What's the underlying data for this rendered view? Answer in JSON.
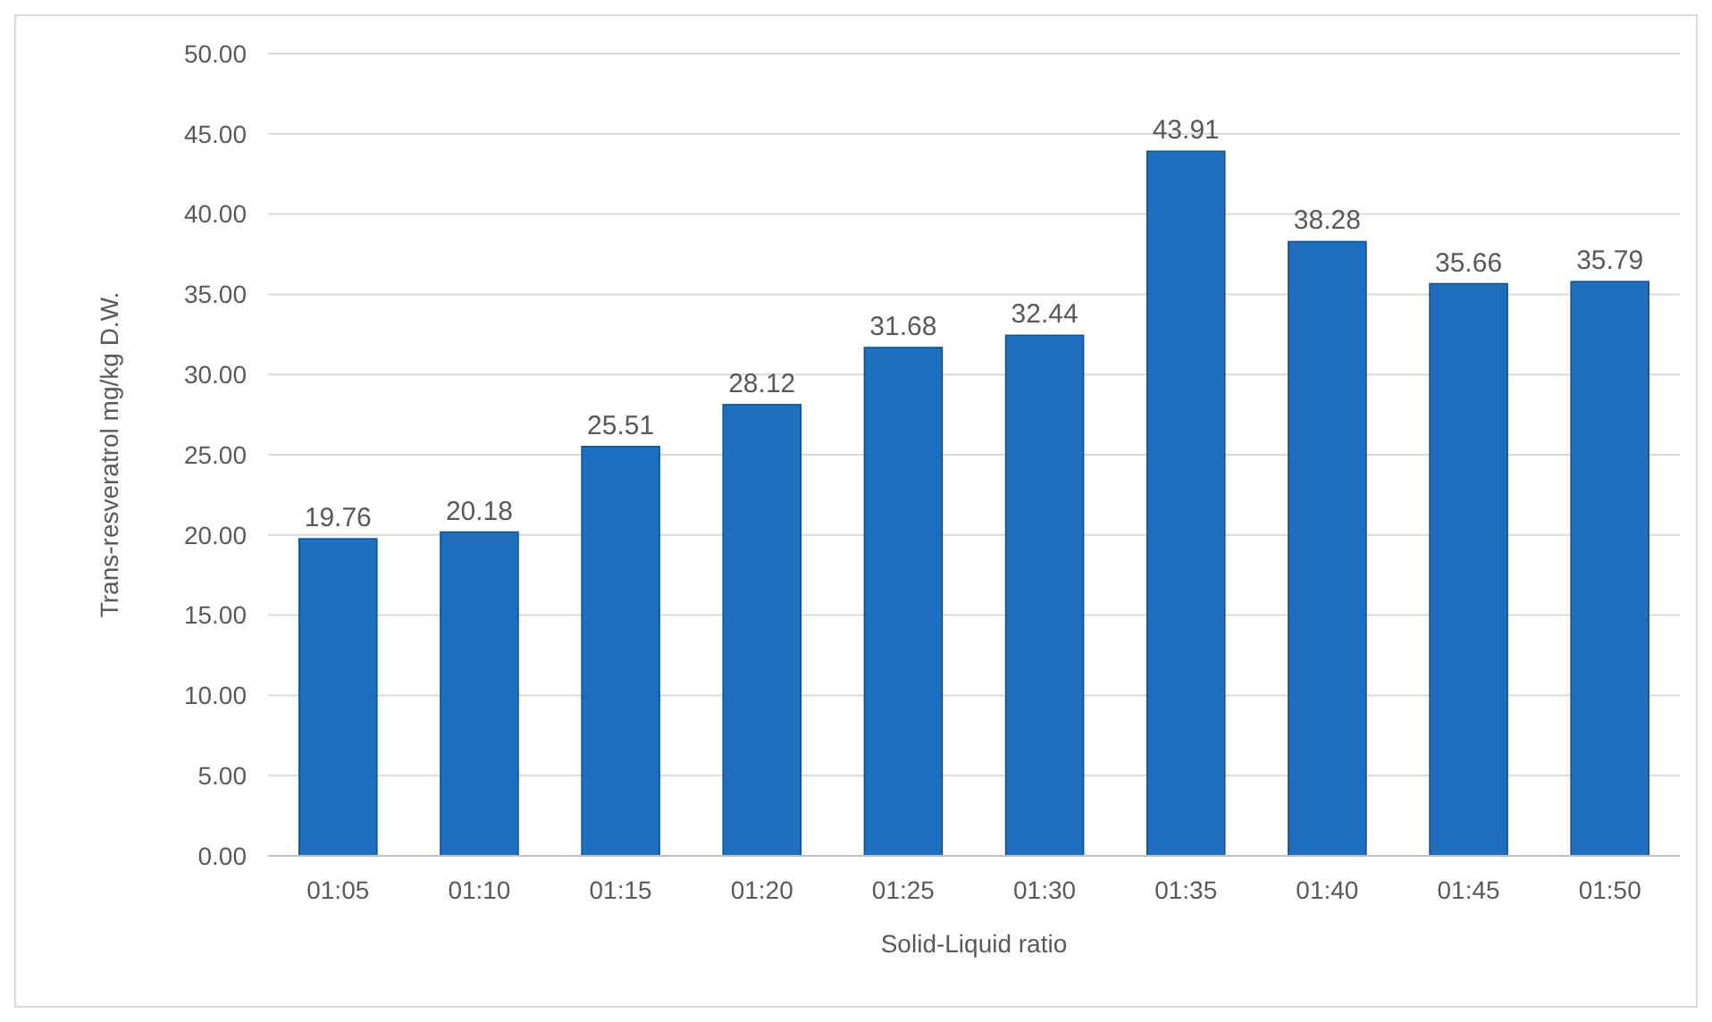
{
  "chart_data": {
    "type": "bar",
    "xlabel": "Solid-Liquid ratio",
    "ylabel": "Trans-resveratrol mg/kg D.W.",
    "categories": [
      "01:05",
      "01:10",
      "01:15",
      "01:20",
      "01:25",
      "01:30",
      "01:35",
      "01:40",
      "01:45",
      "01:50"
    ],
    "values": [
      19.76,
      20.18,
      25.51,
      28.12,
      31.68,
      32.44,
      43.91,
      38.28,
      35.66,
      35.79
    ],
    "color": "#1f6fbf",
    "ylim": [
      0,
      50
    ],
    "yticks": [
      {
        "value": 0,
        "label": "0.00"
      },
      {
        "value": 5,
        "label": "5.00"
      },
      {
        "value": 10,
        "label": "10.00"
      },
      {
        "value": 15,
        "label": "15.00"
      },
      {
        "value": 20,
        "label": "20.00"
      },
      {
        "value": 25,
        "label": "25.00"
      },
      {
        "value": 30,
        "label": "30.00"
      },
      {
        "value": 35,
        "label": "35.00"
      },
      {
        "value": 40,
        "label": "40.00"
      },
      {
        "value": 45,
        "label": "45.00"
      },
      {
        "value": 50,
        "label": "50.00"
      }
    ],
    "grid": "y",
    "data_labels": true
  }
}
